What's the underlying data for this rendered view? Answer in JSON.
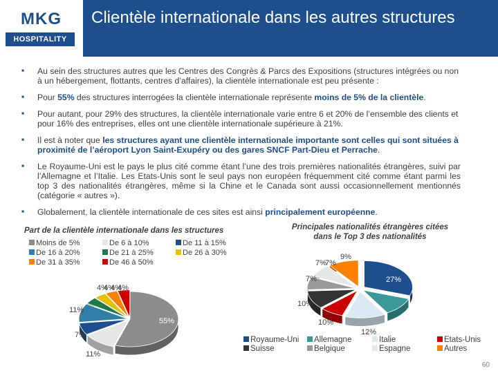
{
  "logo": {
    "name": "MKG",
    "sub": "HOSPITALITY"
  },
  "title": "Clientèle internationale dans les autres structures",
  "bullets": {
    "b1": "Au sein des structures autres que les Centres des Congrès & Parcs des Expositions (structures intégrées ou non à un hébergement, flottants, centres d’affaires), la clientèle internationale est peu présente :",
    "b2_pre": "Pour ",
    "b2_hl1": "55%",
    "b2_mid": " des structures interrogées la clientèle internationale représente ",
    "b2_hl2": "moins de 5% de la clientèle",
    "b2_post": ".",
    "b3": "Pour autant, pour 29% des structures, la clientèle internationale varie entre 6 et 20% de l’ensemble des clients et pour 16% des entreprises, elles ont une clientèle internationale supérieure à 21%.",
    "b4_pre": "Il est à noter que ",
    "b4_hl": "les structures ayant une clientèle internationale importante sont celles qui sont situées à proximité de l’aéroport Lyon Saint-Exupéry ou des gares SNCF Part-Dieu et Perrache",
    "b4_post": ".",
    "b5": "Le Royaume-Uni est le pays le plus cité comme étant l’une des trois premières nationalités étrangères, suivi par l’Allemagne et l’Italie. Les Etats-Unis sont le seul pays non européen fréquemment cité comme étant parmi les top 3 des nationalités étrangères, même si la Chine et le Canada sont aussi occasionnellement mentionnés (catégorie « autres »).",
    "b6_pre": "Globalement, la clientèle internationale de ces sites est ainsi ",
    "b6_hl": "principalement européenne",
    "b6_post": "."
  },
  "chart_data": [
    {
      "type": "pie",
      "title": "Part de la clientèle internationale dans les structures",
      "legend": "top",
      "categories": [
        "Moins de 5%",
        "De 6 à 10%",
        "De 11 à 15%",
        "De 16 à 20%",
        "De 21 à 25%",
        "De 26 à 30%",
        "De 31 à 35%",
        "De 46 à 50%"
      ],
      "values": [
        55,
        11,
        7,
        11,
        4,
        4,
        4,
        4
      ],
      "labels": [
        "55%",
        "11%",
        "7%",
        "11%",
        "4%",
        "4%",
        "4%",
        "4%"
      ],
      "colors": [
        "#8c8c8c",
        "#e6e6e6",
        "#1e4f8c",
        "#2f7fa6",
        "#1f7a4a",
        "#e6c000",
        "#ff8000",
        "#cc0000"
      ]
    },
    {
      "type": "pie",
      "title": "Principales nationalités étrangères citées dans le Top 3 des nationalités",
      "legend": "bottom",
      "categories": [
        "Royaume-Uni",
        "Allemagne",
        "Italie",
        "Etats-Unis",
        "Suisse",
        "Belgique",
        "Espagne",
        "Autres"
      ],
      "values": [
        27,
        10,
        12,
        7,
        10,
        7,
        7,
        9
      ],
      "labels": [
        "27%",
        "10%",
        "12%",
        "7%",
        "10%",
        "7%",
        "7%",
        "9%"
      ],
      "colors": [
        "#1e4f8c",
        "#3a9a9a",
        "#d9eaf2",
        "#cc0000",
        "#333333",
        "#999999",
        "#e6e6e6",
        "#ff8000"
      ]
    }
  ],
  "page_number": "60"
}
